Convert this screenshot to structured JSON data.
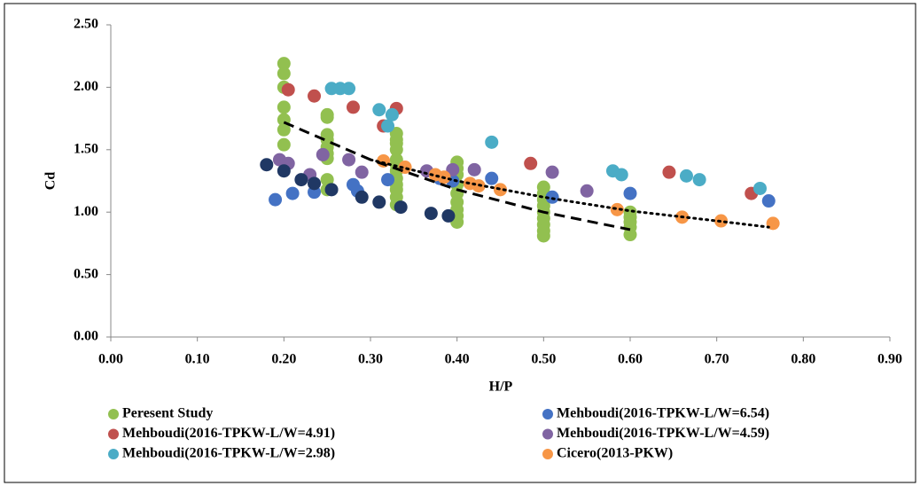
{
  "chart_data": {
    "type": "scatter",
    "x_label": "H/P",
    "y_label": "Cd",
    "xlim": [
      0,
      0.9
    ],
    "ylim": [
      0,
      2.5
    ],
    "xticks": [
      {
        "value": 0,
        "label": "0.00"
      },
      {
        "value": 0.1,
        "label": "0.10"
      },
      {
        "value": 0.2,
        "label": "0.20"
      },
      {
        "value": 0.3,
        "label": "0.30"
      },
      {
        "value": 0.4,
        "label": "0.40"
      },
      {
        "value": 0.5,
        "label": "0.50"
      },
      {
        "value": 0.6,
        "label": "0.60"
      },
      {
        "value": 0.7,
        "label": "0.70"
      },
      {
        "value": 0.8,
        "label": "0.80"
      },
      {
        "value": 0.9,
        "label": "0.90"
      }
    ],
    "yticks": [
      {
        "value": 0,
        "label": "0.00"
      },
      {
        "value": 0.5,
        "label": "0.50"
      },
      {
        "value": 1,
        "label": "1.00"
      },
      {
        "value": 1.5,
        "label": "1.50"
      },
      {
        "value": 2,
        "label": "2.00"
      },
      {
        "value": 2.5,
        "label": "2.50"
      }
    ],
    "legend": "bottom",
    "series": [
      {
        "name": "Peresent Study",
        "color": "#92c050",
        "x": [
          0.2,
          0.2,
          0.2,
          0.2,
          0.2,
          0.2,
          0.2,
          0.25,
          0.25,
          0.25,
          0.25,
          0.25,
          0.25,
          0.25,
          0.25,
          0.25,
          0.33,
          0.33,
          0.33,
          0.33,
          0.33,
          0.33,
          0.33,
          0.33,
          0.33,
          0.33,
          0.33,
          0.33,
          0.4,
          0.4,
          0.4,
          0.4,
          0.4,
          0.4,
          0.4,
          0.4,
          0.4,
          0.5,
          0.5,
          0.5,
          0.5,
          0.5,
          0.5,
          0.5,
          0.5,
          0.5,
          0.6,
          0.6,
          0.6,
          0.6,
          0.6
        ],
        "values": [
          2.19,
          2.11,
          2.0,
          1.84,
          1.74,
          1.66,
          1.54,
          1.78,
          1.76,
          1.62,
          1.58,
          1.52,
          1.47,
          1.43,
          1.26,
          1.18,
          1.63,
          1.58,
          1.55,
          1.5,
          1.42,
          1.38,
          1.33,
          1.27,
          1.22,
          1.18,
          1.12,
          1.06,
          1.4,
          1.35,
          1.3,
          1.22,
          1.15,
          1.08,
          1.02,
          0.97,
          0.92,
          1.2,
          1.15,
          1.1,
          1.05,
          1.0,
          0.95,
          0.9,
          0.85,
          0.81,
          1.0,
          0.96,
          0.92,
          0.88,
          0.82
        ]
      },
      {
        "name": "Mehboudi(2016-TPKW-L/W=6.54)",
        "color": "#4472c4",
        "x": [
          0.19,
          0.21,
          0.235,
          0.28,
          0.285,
          0.32,
          0.38,
          0.395,
          0.44,
          0.51,
          0.6,
          0.76
        ],
        "values": [
          1.1,
          1.15,
          1.16,
          1.22,
          1.17,
          1.26,
          1.27,
          1.25,
          1.27,
          1.12,
          1.15,
          1.09
        ]
      },
      {
        "name": "Mehboudi(2016-TPKW-L/W=4.91)",
        "color": "#c0504d",
        "x": [
          0.205,
          0.235,
          0.28,
          0.315,
          0.33,
          0.485,
          0.645,
          0.74
        ],
        "values": [
          1.98,
          1.93,
          1.84,
          1.69,
          1.83,
          1.39,
          1.32,
          1.15
        ]
      },
      {
        "name": "Mehboudi(2016-TPKW-L/W=4.59)",
        "color": "#8064a2",
        "x": [
          0.195,
          0.205,
          0.23,
          0.245,
          0.275,
          0.29,
          0.365,
          0.395,
          0.42,
          0.51,
          0.55
        ],
        "values": [
          1.42,
          1.39,
          1.3,
          1.46,
          1.42,
          1.32,
          1.33,
          1.34,
          1.34,
          1.32,
          1.17
        ]
      },
      {
        "name": "Mehboudi(2016-TPKW-L/W=2.98)",
        "color": "#4bacc6",
        "x": [
          0.255,
          0.265,
          0.275,
          0.31,
          0.32,
          0.325,
          0.44,
          0.58,
          0.59,
          0.665,
          0.68,
          0.75
        ],
        "values": [
          1.99,
          1.99,
          1.99,
          1.82,
          1.69,
          1.78,
          1.56,
          1.33,
          1.3,
          1.29,
          1.26,
          1.19
        ]
      },
      {
        "name": "Cicero(2013-PKW)",
        "color": "#f79646",
        "x": [
          0.315,
          0.34,
          0.375,
          0.385,
          0.415,
          0.425,
          0.45,
          0.585,
          0.66,
          0.705,
          0.765
        ],
        "values": [
          1.41,
          1.36,
          1.3,
          1.28,
          1.23,
          1.21,
          1.18,
          1.02,
          0.96,
          0.93,
          0.91
        ]
      },
      {
        "color": "#203864",
        "x": [
          0.18,
          0.2,
          0.22,
          0.235,
          0.255,
          0.29,
          0.31,
          0.335,
          0.37,
          0.39
        ],
        "values": [
          1.38,
          1.33,
          1.26,
          1.23,
          1.18,
          1.12,
          1.08,
          1.04,
          0.99,
          0.97
        ]
      }
    ],
    "trendlines": [
      {
        "style": "dashed",
        "color": "#000000",
        "x": [
          0.2,
          0.3,
          0.4,
          0.5,
          0.6
        ],
        "values": [
          1.72,
          1.42,
          1.18,
          1.0,
          0.86
        ]
      },
      {
        "style": "dotted",
        "color": "#000000",
        "x": [
          0.3,
          0.4,
          0.5,
          0.6,
          0.7,
          0.76
        ],
        "values": [
          1.42,
          1.25,
          1.12,
          1.01,
          0.93,
          0.88
        ]
      }
    ]
  }
}
